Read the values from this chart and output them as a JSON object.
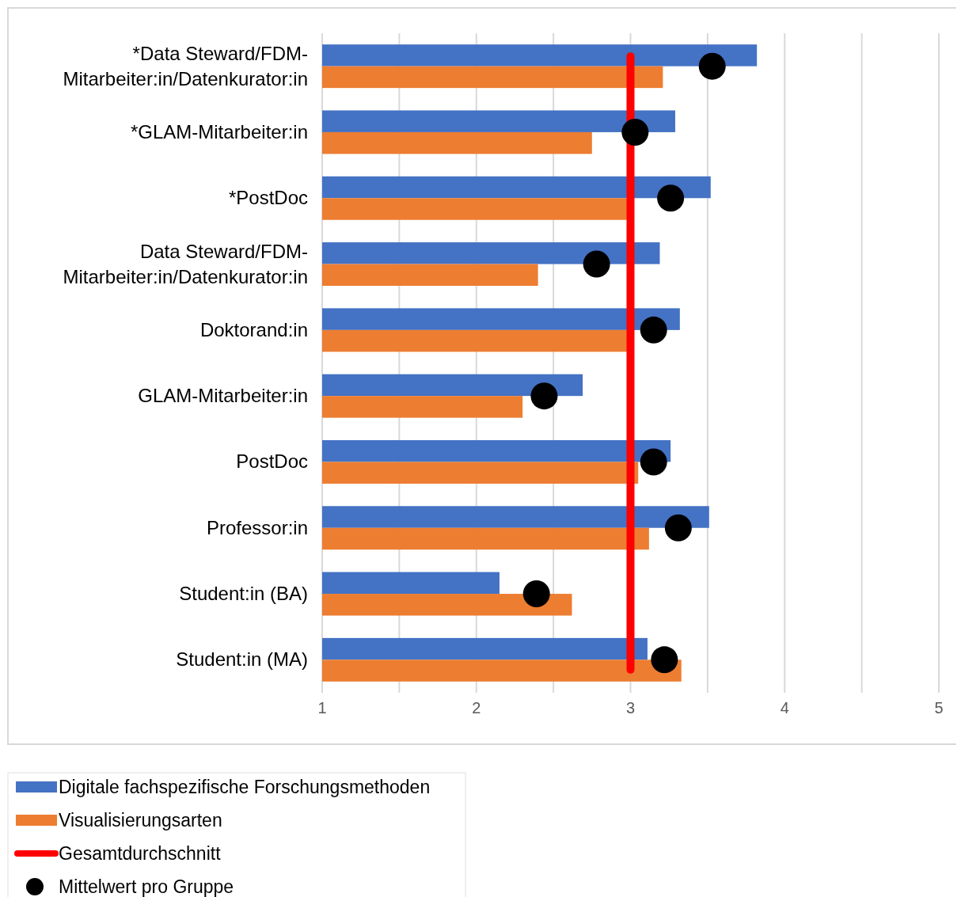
{
  "chart_data": {
    "type": "bar",
    "orientation": "horizontal",
    "categories": [
      "*Data Steward/FDM-Mitarbeiter:in/Datenkurator:in",
      "*GLAM-Mitarbeiter:in",
      "*PostDoc",
      "Data Steward/FDM-Mitarbeiter:in/Datenkurator:in",
      "Doktorand:in",
      "GLAM-Mitarbeiter:in",
      "PostDoc",
      "Professor:in",
      "Student:in (BA)",
      "Student:in (MA)"
    ],
    "series": [
      {
        "name": "Digitale fachspezifische Forschungsmethoden",
        "color": "#4472c4",
        "values": [
          3.82,
          3.29,
          3.52,
          3.19,
          3.32,
          2.69,
          3.26,
          3.51,
          2.15,
          3.11
        ]
      },
      {
        "name": "Visualisierungsarten",
        "color": "#ed7d31",
        "values": [
          3.21,
          2.75,
          2.98,
          2.4,
          2.98,
          2.3,
          3.05,
          3.12,
          2.62,
          3.33
        ]
      },
      {
        "type": "scatter",
        "name": "Mittelwert pro Gruppe",
        "color": "#000000",
        "marker": "circle",
        "x": [
          "*Data Steward/FDM-Mitarbeiter:in/Datenkurator:in",
          "*GLAM-Mitarbeiter:in",
          "*PostDoc",
          "Data Steward/FDM-Mitarbeiter:in/Datenkurator:in",
          "Doktorand:in",
          "GLAM-Mitarbeiter:in",
          "PostDoc",
          "Professor:in",
          "Student:in (BA)",
          "Student:in (MA)"
        ],
        "values": [
          3.53,
          3.03,
          3.26,
          2.78,
          3.15,
          2.44,
          3.15,
          3.31,
          2.39,
          3.22
        ]
      }
    ],
    "ref_lines": [
      {
        "axis": "x",
        "value": 3,
        "label": "Gesamtdurchschnitt",
        "color": "#ff0000"
      }
    ],
    "xlim": [
      1,
      5
    ],
    "xticks": [
      1,
      {
        "value": 1.5,
        "label": null
      },
      2,
      {
        "value": 2.5,
        "label": null
      },
      3,
      {
        "value": 3.5,
        "label": null
      },
      4,
      {
        "value": 4.5,
        "label": null
      },
      5
    ],
    "grid": "x",
    "legend": "bottom"
  }
}
